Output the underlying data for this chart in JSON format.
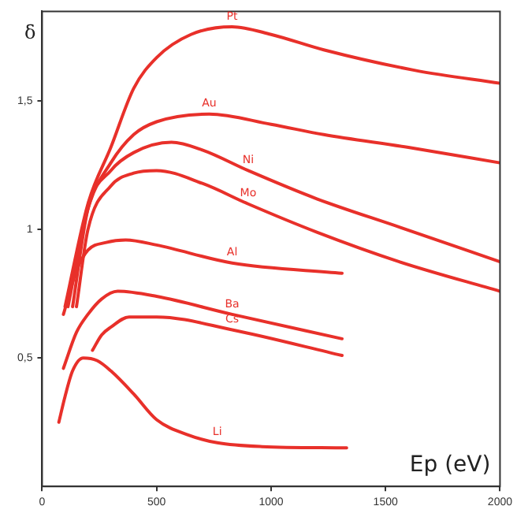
{
  "chart_data": {
    "type": "line",
    "xlabel": "Ep (eV)",
    "ylabel": "δ",
    "xlim": [
      0,
      2000
    ],
    "ylim": [
      0,
      1.85
    ],
    "xticks": [
      0,
      500,
      1000,
      1500,
      2000
    ],
    "yticks": [
      {
        "value": 0.5,
        "label": "0,5"
      },
      {
        "value": 1,
        "label": "1"
      },
      {
        "value": 1.5,
        "label": "1,5"
      }
    ],
    "grid": false,
    "legend": false,
    "marker": "none",
    "line_style": "solid",
    "series": [
      {
        "name": "Pt",
        "color": "#e8302a",
        "x": [
          100,
          200,
          300,
          400,
          500,
          650,
          830,
          1000,
          1230,
          1630,
          2000
        ],
        "values": [
          0.7,
          1.1,
          1.32,
          1.55,
          1.67,
          1.76,
          1.79,
          1.76,
          1.7,
          1.62,
          1.57
        ]
      },
      {
        "name": "Au",
        "color": "#e8302a",
        "x": [
          113,
          200,
          300,
          400,
          500,
          730,
          1000,
          1230,
          1600,
          2000
        ],
        "values": [
          0.7,
          1.08,
          1.26,
          1.37,
          1.42,
          1.45,
          1.41,
          1.37,
          1.32,
          1.26
        ]
      },
      {
        "name": "Ni",
        "color": "#e8302a",
        "x": [
          133,
          200,
          300,
          400,
          565,
          700,
          900,
          1200,
          1560,
          2000
        ],
        "values": [
          0.7,
          1.08,
          1.23,
          1.3,
          1.34,
          1.31,
          1.23,
          1.12,
          1.01,
          0.875
        ]
      },
      {
        "name": "Mo",
        "color": "#e8302a",
        "x": [
          150,
          200,
          300,
          400,
          500,
          700,
          900,
          1200,
          1560,
          2000
        ],
        "values": [
          0.7,
          1.0,
          1.17,
          1.22,
          1.23,
          1.18,
          1.1,
          0.99,
          0.875,
          0.76
        ]
      },
      {
        "name": "Al",
        "color": "#e8302a",
        "x": [
          93,
          150,
          200,
          280,
          365,
          500,
          830,
          1310
        ],
        "values": [
          0.67,
          0.84,
          0.92,
          0.95,
          0.96,
          0.94,
          0.87,
          0.83
        ]
      },
      {
        "name": "Ba",
        "color": "#e8302a",
        "x": [
          93,
          150,
          200,
          260,
          330,
          500,
          830,
          1310
        ],
        "values": [
          0.46,
          0.6,
          0.67,
          0.73,
          0.76,
          0.74,
          0.67,
          0.575
        ]
      },
      {
        "name": "Cs",
        "color": "#e8302a",
        "x": [
          220,
          260,
          300,
          380,
          500,
          830,
          1310
        ],
        "values": [
          0.53,
          0.59,
          0.62,
          0.66,
          0.66,
          0.61,
          0.51
        ]
      },
      {
        "name": "Li",
        "color": "#e8302a",
        "x": [
          73,
          100,
          133,
          180,
          240,
          300,
          400,
          500,
          640,
          765,
          960,
          1330
        ],
        "values": [
          0.25,
          0.35,
          0.45,
          0.5,
          0.49,
          0.45,
          0.36,
          0.26,
          0.2,
          0.17,
          0.155,
          0.15
        ]
      }
    ]
  }
}
